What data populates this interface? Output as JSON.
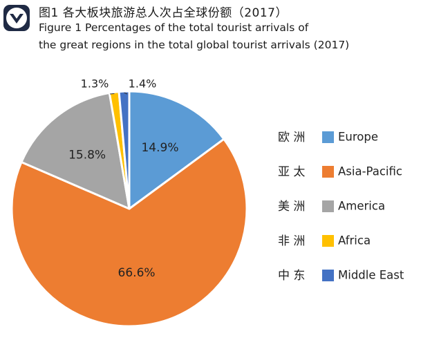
{
  "header": {
    "logo_icon": "chevron-shield-icon",
    "title_zh": "图1 各大板块旅游总人次占全球份额（2017）",
    "title_en_line1": "Figure 1 Percentages of the total tourist arrivals of",
    "title_en_line2": "the great regions in the total global tourist arrivals (2017)"
  },
  "chart_data": {
    "type": "pie",
    "title": "",
    "start_angle_deg": 0,
    "direction": "clockwise",
    "series": [
      {
        "name_zh": "欧 洲",
        "name": "Europe",
        "value": 14.9,
        "label": "14.9%",
        "color": "#5b9bd5"
      },
      {
        "name_zh": "亚 太",
        "name": "Asia-Pacific",
        "value": 66.6,
        "label": "66.6%",
        "color": "#ed7d31"
      },
      {
        "name_zh": "美 洲",
        "name": "America",
        "value": 15.8,
        "label": "15.8%",
        "color": "#a5a5a5"
      },
      {
        "name_zh": "非 洲",
        "name": "Africa",
        "value": 1.3,
        "label": "1.3%",
        "color": "#ffc000"
      },
      {
        "name_zh": "中 东",
        "name": "Middle East",
        "value": 1.4,
        "label": "1.4%",
        "color": "#4472c4"
      }
    ],
    "legend_position": "right"
  }
}
